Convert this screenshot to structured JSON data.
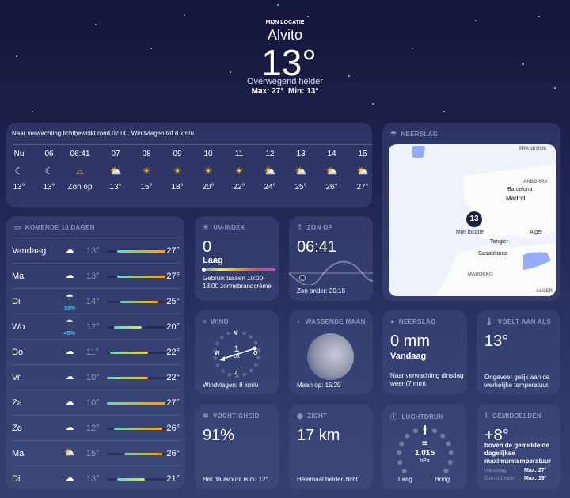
{
  "header": {
    "location_label": "MIJN LOCATIE",
    "city": "Alvito",
    "temp": "13°",
    "condition": "Overwegend helder",
    "maxmin": "Max: 27°  Min: 13°"
  },
  "hourly": {
    "summary": "Naar verwachting lichtbewolkt rond 07:00. Windvlagen tot 8 km/u.",
    "items": [
      {
        "time": "Nu",
        "icon": "moon-stars",
        "temp": "13°"
      },
      {
        "time": "06",
        "icon": "moon-stars",
        "temp": "13°"
      },
      {
        "time": "06:41",
        "icon": "sunrise",
        "temp": "Zon op"
      },
      {
        "time": "07",
        "icon": "cloud-sun",
        "temp": "13°"
      },
      {
        "time": "08",
        "icon": "sun",
        "temp": "15°"
      },
      {
        "time": "09",
        "icon": "sun",
        "temp": "18°"
      },
      {
        "time": "10",
        "icon": "sun",
        "temp": "20°"
      },
      {
        "time": "11",
        "icon": "sun",
        "temp": "22°"
      },
      {
        "time": "12",
        "icon": "cloud-sun",
        "temp": "24°"
      },
      {
        "time": "13",
        "icon": "cloud-sun",
        "temp": "25°"
      },
      {
        "time": "14",
        "icon": "cloud-sun",
        "temp": "26°"
      },
      {
        "time": "15",
        "icon": "cloud-sun",
        "temp": "27°"
      }
    ]
  },
  "forecast": {
    "title": "KOMENDE 10 DAGEN",
    "range": [
      10,
      27
    ],
    "days": [
      {
        "day": "Vandaag",
        "icon": "cloud-moon",
        "precip": "",
        "low": 13,
        "high": 27,
        "lo": "13°",
        "hi": "27°"
      },
      {
        "day": "Ma",
        "icon": "cloud",
        "precip": "",
        "low": 13,
        "high": 27,
        "lo": "13°",
        "hi": "27°"
      },
      {
        "day": "Di",
        "icon": "cloud-rain",
        "precip": "55%",
        "low": 14,
        "high": 25,
        "lo": "14°",
        "hi": "25°"
      },
      {
        "day": "Wo",
        "icon": "cloud-rain",
        "precip": "45%",
        "low": 12,
        "high": 20,
        "lo": "12°",
        "hi": "20°"
      },
      {
        "day": "Do",
        "icon": "cloud",
        "precip": "",
        "low": 11,
        "high": 22,
        "lo": "11°",
        "hi": "22°"
      },
      {
        "day": "Vr",
        "icon": "cloud",
        "precip": "",
        "low": 10,
        "high": 22,
        "lo": "10°",
        "hi": "22°"
      },
      {
        "day": "Za",
        "icon": "cloud",
        "precip": "",
        "low": 10,
        "high": 27,
        "lo": "10°",
        "hi": "27°"
      },
      {
        "day": "Zo",
        "icon": "cloud",
        "precip": "",
        "low": 12,
        "high": 26,
        "lo": "12°",
        "hi": "26°"
      },
      {
        "day": "Ma",
        "icon": "cloud-sun",
        "precip": "",
        "low": 15,
        "high": 26,
        "lo": "15°",
        "hi": "26°"
      },
      {
        "day": "Di",
        "icon": "cloud",
        "precip": "",
        "low": 13,
        "high": 21,
        "lo": "13°",
        "hi": "21°"
      }
    ]
  },
  "map": {
    "title": "NEERSLAG",
    "badge": "13",
    "my_location": "Mijn locatie",
    "labels": {
      "frankrijk": "FRANKRIJK",
      "andorra": "ANDORRA",
      "barcelona": "Barcelona",
      "madrid": "Madrid",
      "tangier": "Tangier",
      "alger": "Alger",
      "casablanca": "Casablanca",
      "marokko": "MAROKKO",
      "algerije": "ALGER"
    }
  },
  "uv": {
    "title": "UV-INDEX",
    "value": "0",
    "level": "Laag",
    "level_fraction": 0,
    "note": "Gebruik tussen 10:00-18:00 zonnebrandcrème."
  },
  "sunrise": {
    "title": "ZON OP",
    "value": "06:41",
    "note": "Zon onder: 20:18"
  },
  "wind": {
    "title": "WIND",
    "n": "N",
    "o": "O",
    "z": "Z",
    "w": "W",
    "value": "1",
    "unit": "bft",
    "note": "Windvlagen: 8 km/u"
  },
  "moon": {
    "title": "WASSENDE MAAN",
    "note": "Maan op: 15:20"
  },
  "precip": {
    "title": "NEERSLAG",
    "value": "0 mm",
    "period": "Vandaag",
    "note": "Naar verwachting dinsdag weer (7 mm)."
  },
  "feels": {
    "title": "VOELT AAN ALS",
    "value": "13°",
    "note": "Ongeveer gelijk aan de werkelijke temperatuur."
  },
  "humidity": {
    "title": "VOCHTIGHEID",
    "value": "91%",
    "note": "Het dauwpunt is nu 12°."
  },
  "visibility": {
    "title": "ZICHT",
    "value": "17 km",
    "note": "Helemaal helder zicht."
  },
  "pressure": {
    "title": "LUCHTDRUK",
    "trend": "=",
    "value": "1.015",
    "unit": "hPa",
    "low": "Laag",
    "high": "Hoog"
  },
  "averages": {
    "title": "GEMIDDELDEN",
    "value": "+8°",
    "note": "boven de gemiddelde dagelijkse maximumtemperatuur",
    "today_label": "Vandaag",
    "today_value": "Max: 27°",
    "avg_label": "Gemiddelde",
    "avg_value": "Max: 19°"
  }
}
